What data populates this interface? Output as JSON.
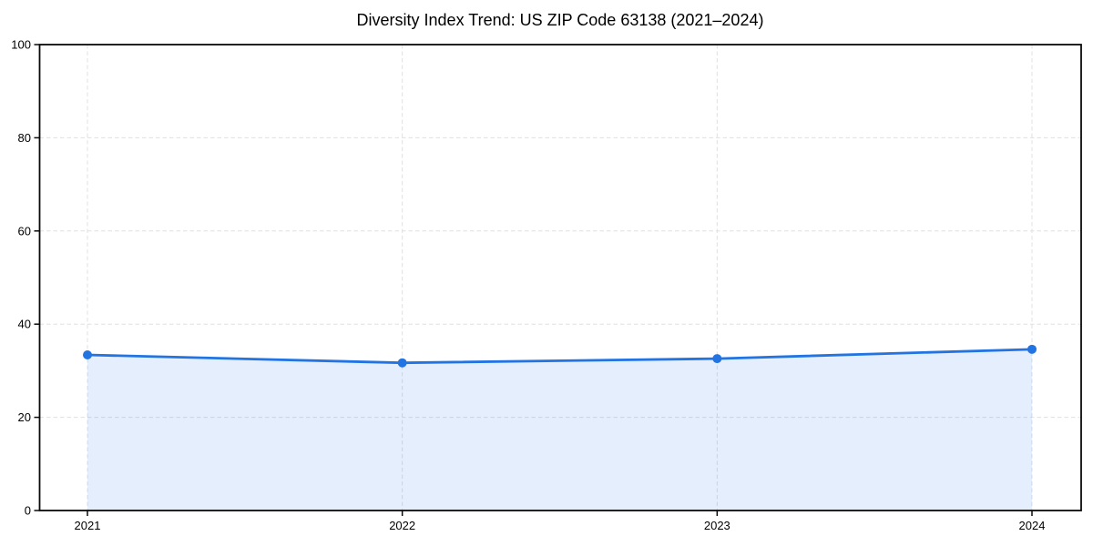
{
  "chart_data": {
    "type": "area",
    "title": "Diversity Index Trend: US ZIP Code 63138 (2021–2024)",
    "x": [
      2021,
      2022,
      2023,
      2024
    ],
    "x_tick_labels": [
      "2021",
      "2022",
      "2023",
      "2024"
    ],
    "y_ticks": [
      0,
      20,
      40,
      60,
      80,
      100
    ],
    "y_tick_labels": [
      "0",
      "20",
      "40",
      "60",
      "80",
      "100"
    ],
    "series": [
      {
        "name": "Diversity Index",
        "values": [
          33.4,
          31.7,
          32.6,
          34.6
        ]
      }
    ],
    "xlabel": "",
    "ylabel": "",
    "ylim": [
      0,
      100
    ],
    "grid": {
      "horizontal": true,
      "vertical": true,
      "style": "dashed"
    },
    "legend_position": "none",
    "colors": {
      "line": "#2274e3",
      "marker": "#2274e3",
      "fill": "rgba(34, 116, 227, 0.12)",
      "grid": "#e0e0e0",
      "spine": "#0a0a0a",
      "tick_text": "#000000",
      "background": "#ffffff"
    }
  }
}
